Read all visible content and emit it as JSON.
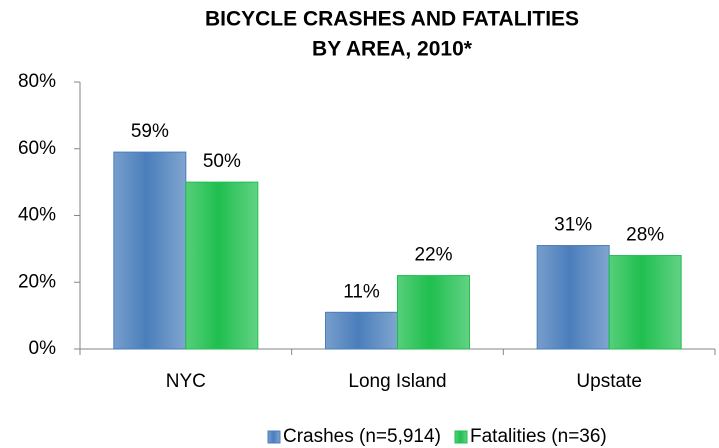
{
  "chart_data": {
    "type": "bar",
    "title": [
      "BICYCLE CRASHES AND FATALITIES",
      "BY AREA, 2010*"
    ],
    "categories": [
      "NYC",
      "Long Island",
      "Upstate"
    ],
    "series": [
      {
        "name": "Crashes (n=5,914)",
        "color": "#4a7ebb",
        "values": [
          59,
          11,
          31
        ],
        "value_labels": [
          "59%",
          "11%",
          "31%"
        ]
      },
      {
        "name": "Fatalities (n=36)",
        "color": "#1fbf4f",
        "values": [
          50,
          22,
          28
        ],
        "value_labels": [
          "50%",
          "22%",
          "28%"
        ]
      }
    ],
    "ylim": [
      0,
      80
    ],
    "yticks": [
      {
        "value": 0,
        "label": "0%"
      },
      {
        "value": 20,
        "label": "20%"
      },
      {
        "value": 40,
        "label": "40%"
      },
      {
        "value": 60,
        "label": "60%"
      },
      {
        "value": 80,
        "label": "80%"
      }
    ],
    "grid": false,
    "legend": "bottom"
  }
}
